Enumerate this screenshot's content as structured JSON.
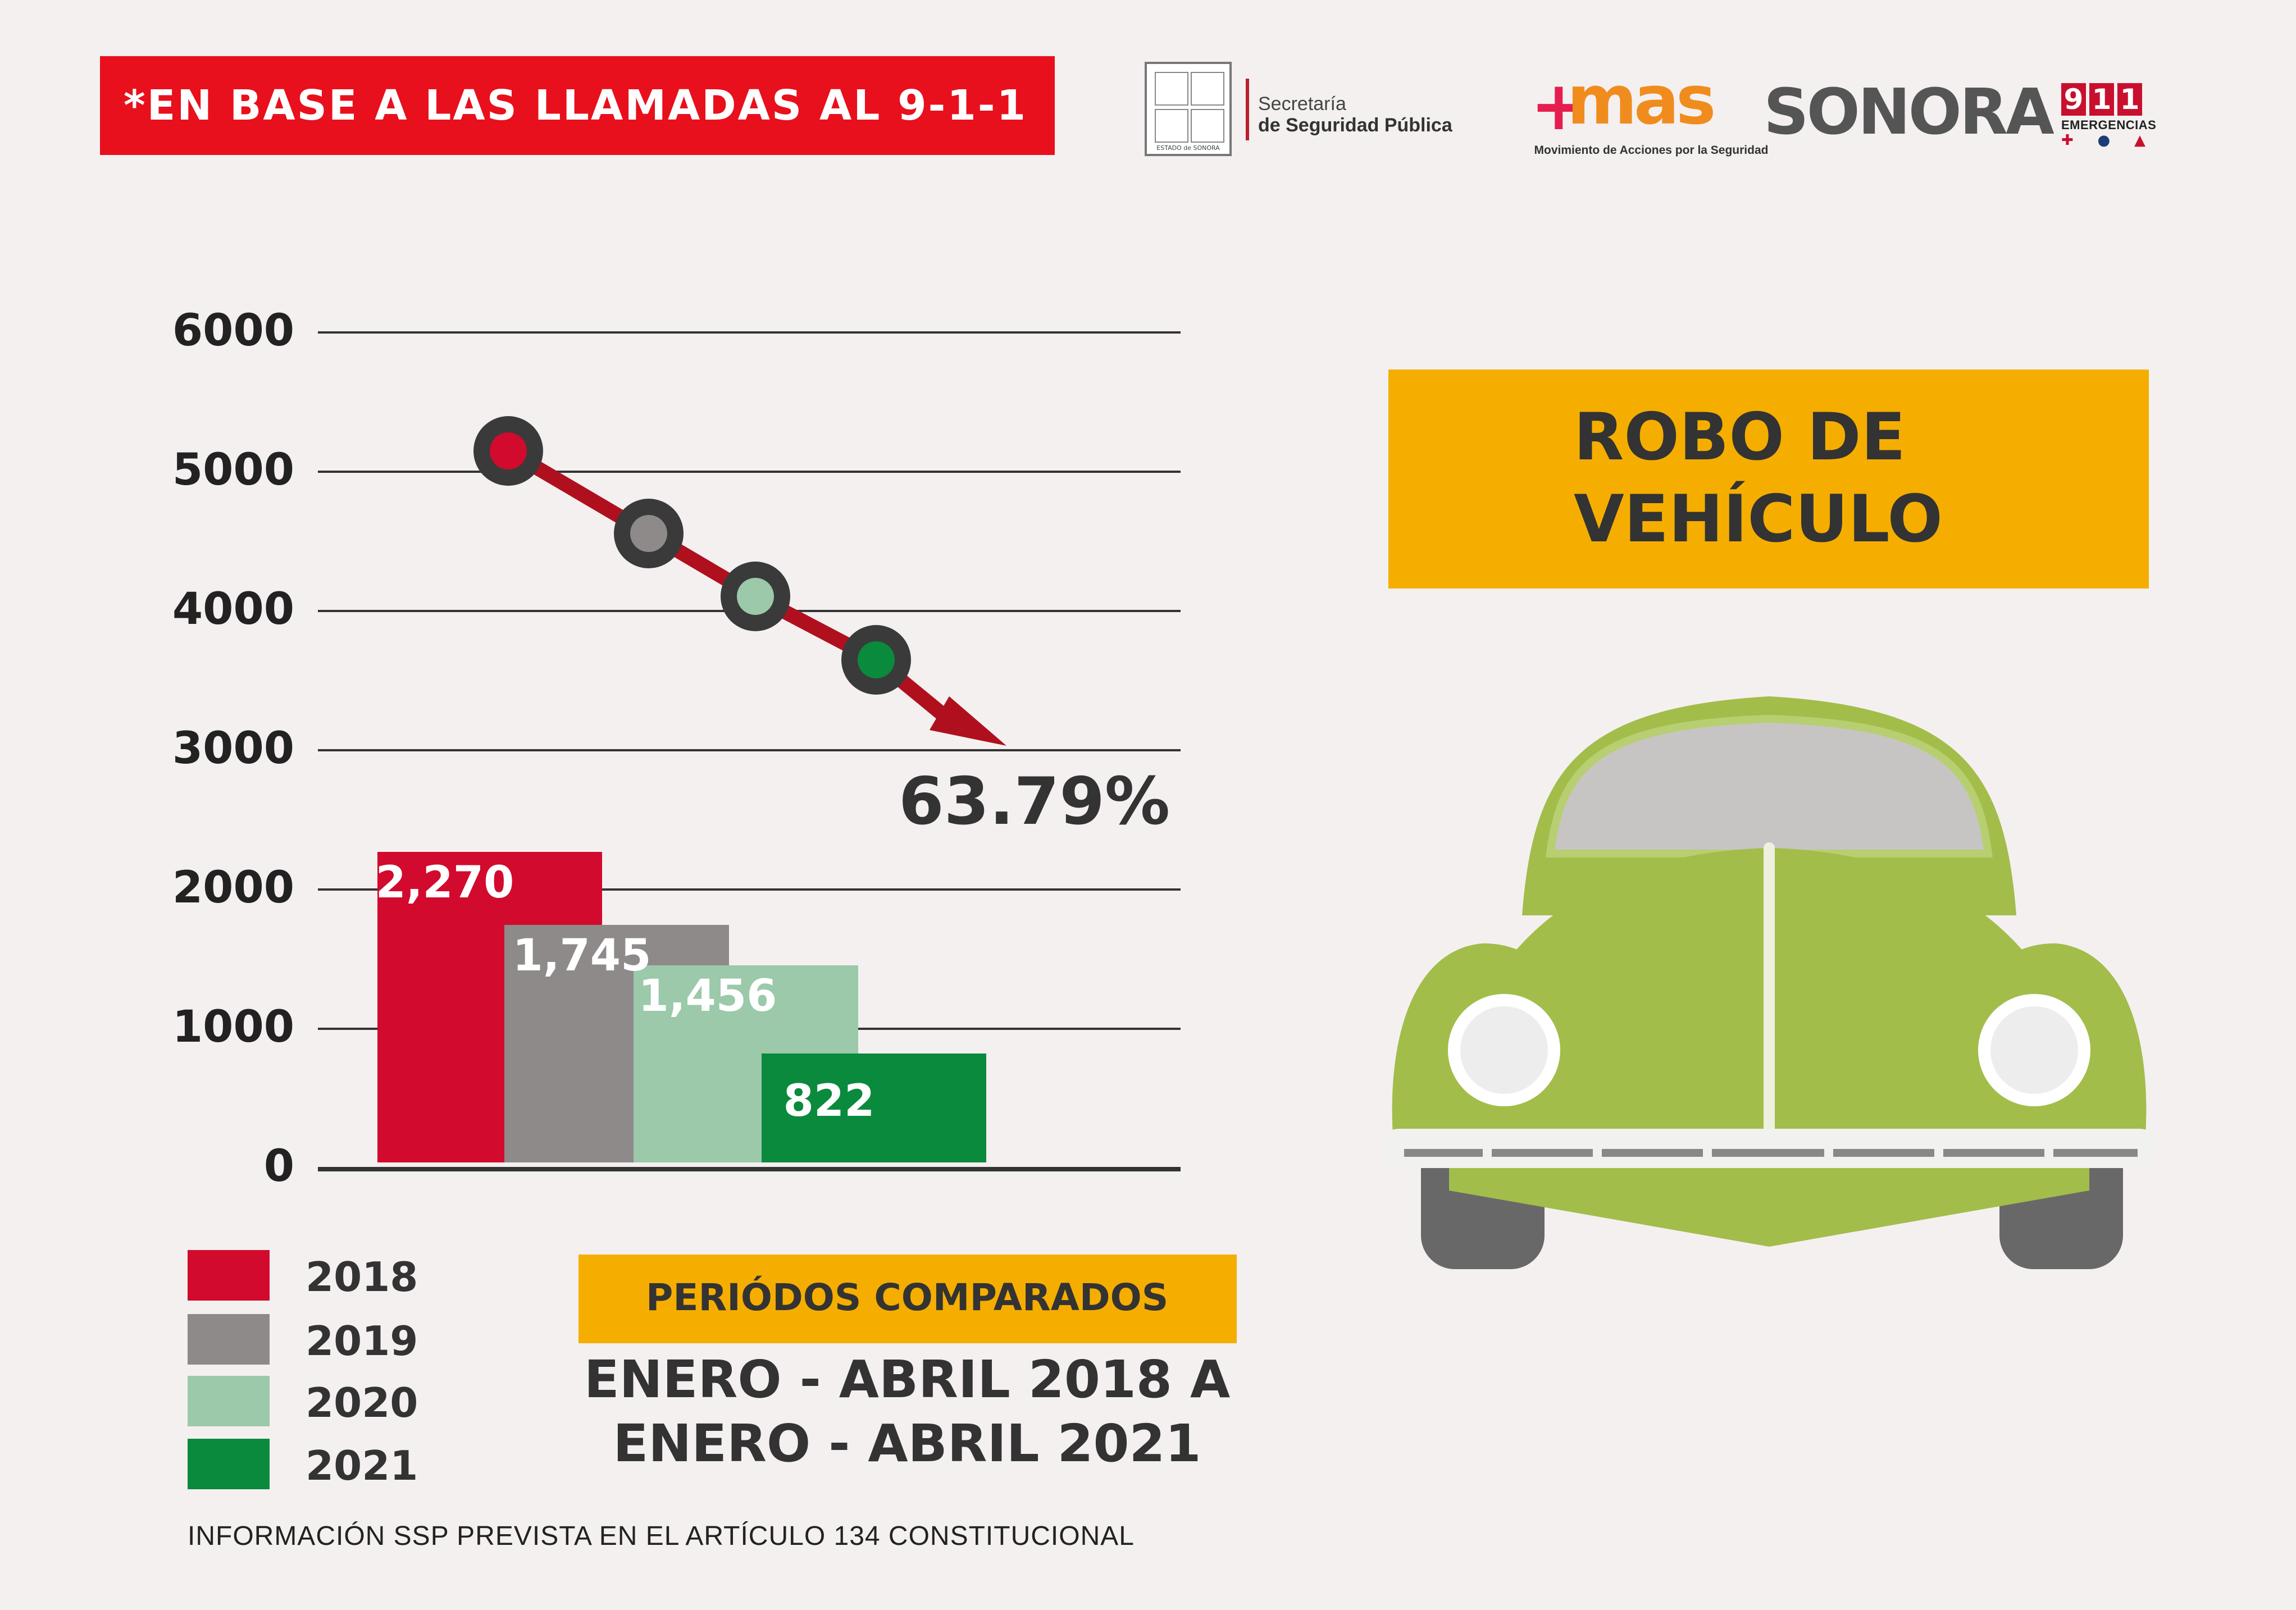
{
  "banner": "*EN BASE A LAS LLAMADAS AL 9-1-1",
  "logos": {
    "state_seal_caption": "ESTADO de SONORA",
    "secretaria_line1": "Secretaría",
    "secretaria_line2": "de Seguridad Pública",
    "mas_word": "mas",
    "mas_plus": "+",
    "mas_sub": "Movimiento de Acciones por la Seguridad",
    "sonora": "SONORA",
    "e911_digits": [
      "9",
      "1",
      "1"
    ],
    "e911_label": "EMERGENCIAS",
    "e911_icons": [
      "✚",
      "●",
      "▲"
    ]
  },
  "title": {
    "line1": "ROBO DE",
    "line2": "VEHÍCULO"
  },
  "chart_data": {
    "type": "bar",
    "categories": [
      "2018",
      "2019",
      "2020",
      "2021"
    ],
    "values": [
      2270,
      1745,
      1456,
      822
    ],
    "value_labels": [
      "2,270",
      "1,745",
      "1,456",
      "822"
    ],
    "colors": [
      "#d20a2e",
      "#8e8a8a",
      "#9bc9aa",
      "#0a8a3c"
    ],
    "trend_marker_colors": [
      "#d20a2e",
      "#8e8a8a",
      "#9bc9aa",
      "#0a8a3c"
    ],
    "trend_color": "#b0101e",
    "ylim": [
      0,
      6000
    ],
    "yticks": [
      "6000",
      "5000",
      "4000",
      "3000",
      "2000",
      "1000",
      "0"
    ],
    "grid": true,
    "change_label": "63.79%",
    "legend": [
      "2018",
      "2019",
      "2020",
      "2021"
    ],
    "legend_placement": "bottom-left"
  },
  "periods": {
    "heading": "PERIÓDOS COMPARADOS",
    "line1": "ENERO - ABRIL 2018 A",
    "line2": "ENERO - ABRIL 2021"
  },
  "footnote": "INFORMACIÓN SSP PREVISTA EN EL ARTÍCULO 134 CONSTITUCIONAL",
  "colors": {
    "banner": "#e8101c",
    "title_box": "#f5ae00",
    "car_body": "#a2bd4a",
    "background": "#f4f0f0"
  }
}
